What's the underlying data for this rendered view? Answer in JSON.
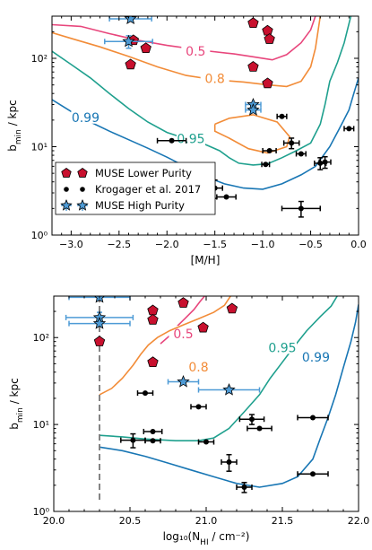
{
  "chart_data": [
    {
      "type": "scatter",
      "xlabel": "[M/H]",
      "ylabel": "b_min / kpc",
      "xlim": [
        -3.2,
        0.0
      ],
      "ylim": [
        1,
        300
      ],
      "yscale": "log",
      "x_ticks": [
        -3.0,
        -2.5,
        -2.0,
        -1.5,
        -1.0,
        -0.5,
        0.0
      ],
      "x_tick_labels": [
        "−3.0",
        "−2.5",
        "−2.0",
        "−1.5",
        "−1.0",
        "−0.5",
        "0.0"
      ],
      "y_ticks": [
        1,
        10,
        100
      ],
      "y_tick_labels": [
        "10⁰",
        "10¹",
        "10²"
      ],
      "legend_position": "lower-left",
      "legend": [
        "MUSE Lower Purity",
        "Krogager et al. 2017",
        "MUSE High Purity"
      ],
      "contours": [
        {
          "level": 0.5,
          "label": "0.5",
          "color": "#e8467c",
          "points": [
            [
              -3.2,
              240
            ],
            [
              -2.9,
              230
            ],
            [
              -2.6,
              190
            ],
            [
              -2.3,
              160
            ],
            [
              -2.0,
              140
            ],
            [
              -1.6,
              122
            ],
            [
              -1.3,
              112
            ],
            [
              -1.1,
              104
            ],
            [
              -0.9,
              96
            ],
            [
              -0.75,
              110
            ],
            [
              -0.6,
              150
            ],
            [
              -0.5,
              210
            ],
            [
              -0.45,
              300
            ]
          ]
        },
        {
          "level": 0.8,
          "label": "0.8",
          "color": "#f28c38",
          "points": [
            [
              -3.2,
              195
            ],
            [
              -3.0,
              168
            ],
            [
              -2.7,
              135
            ],
            [
              -2.4,
              105
            ],
            [
              -2.1,
              80
            ],
            [
              -1.8,
              64
            ],
            [
              -1.5,
              57
            ],
            [
              -1.2,
              54
            ],
            [
              -0.95,
              50
            ],
            [
              -0.75,
              48
            ],
            [
              -0.6,
              55
            ],
            [
              -0.5,
              80
            ],
            [
              -0.45,
              130
            ],
            [
              -0.4,
              300
            ]
          ],
          "island": [
            [
              -1.5,
              18
            ],
            [
              -1.35,
              21
            ],
            [
              -1.1,
              23
            ],
            [
              -0.85,
              19
            ],
            [
              -0.72,
              13
            ],
            [
              -0.75,
              10
            ],
            [
              -0.95,
              8.5
            ],
            [
              -1.15,
              9.5
            ],
            [
              -1.35,
              12.5
            ],
            [
              -1.5,
              15
            ],
            [
              -1.5,
              18
            ]
          ]
        },
        {
          "level": 0.95,
          "label": "0.95",
          "color": "#1fa08e",
          "points": [
            [
              -3.2,
              120
            ],
            [
              -3.0,
              85
            ],
            [
              -2.8,
              60
            ],
            [
              -2.6,
              40
            ],
            [
              -2.4,
              27
            ],
            [
              -2.2,
              19
            ],
            [
              -2.0,
              14.5
            ],
            [
              -1.8,
              12.3
            ],
            [
              -1.6,
              10.6
            ],
            [
              -1.45,
              9
            ],
            [
              -1.35,
              7.5
            ],
            [
              -1.25,
              6.5
            ],
            [
              -1.1,
              6.2
            ],
            [
              -0.95,
              6.4
            ],
            [
              -0.8,
              7.5
            ],
            [
              -0.65,
              9
            ],
            [
              -0.5,
              11
            ],
            [
              -0.4,
              18
            ],
            [
              -0.35,
              30
            ],
            [
              -0.3,
              55
            ],
            [
              -0.22,
              90
            ],
            [
              -0.15,
              150
            ],
            [
              -0.08,
              300
            ]
          ]
        },
        {
          "level": 0.99,
          "label": "0.99",
          "color": "#1876b4",
          "points": [
            [
              -3.2,
              34
            ],
            [
              -3.0,
              25
            ],
            [
              -2.8,
              19
            ],
            [
              -2.6,
              15
            ],
            [
              -2.4,
              12
            ],
            [
              -2.2,
              9.6
            ],
            [
              -2.0,
              7.6
            ],
            [
              -1.8,
              5.9
            ],
            [
              -1.6,
              4.6
            ],
            [
              -1.4,
              3.8
            ],
            [
              -1.2,
              3.4
            ],
            [
              -1.0,
              3.3
            ],
            [
              -0.8,
              3.8
            ],
            [
              -0.6,
              4.8
            ],
            [
              -0.45,
              6
            ],
            [
              -0.3,
              10
            ],
            [
              -0.2,
              16
            ],
            [
              -0.1,
              26
            ],
            [
              -0.05,
              40
            ],
            [
              0.0,
              60
            ]
          ]
        }
      ],
      "series": [
        {
          "name": "MUSE Lower Purity",
          "marker": "pentagon",
          "color": "#c8102e",
          "points": [
            [
              -2.35,
              160
            ],
            [
              -2.22,
              130
            ],
            [
              -2.38,
              85
            ],
            [
              -1.1,
              250
            ],
            [
              -0.95,
              205
            ],
            [
              -0.93,
              165
            ],
            [
              -1.1,
              80
            ],
            [
              -0.95,
              52
            ]
          ]
        },
        {
          "name": "Krogager et al. 2017",
          "marker": "circle",
          "color": "#000000",
          "points": [
            {
              "x": -1.95,
              "y": 11.7,
              "xerr": 0.15
            },
            {
              "x": -0.8,
              "y": 22,
              "xerr": 0.05
            },
            {
              "x": -0.1,
              "y": 16,
              "xerr": 0.05
            },
            {
              "x": -0.7,
              "y": 11,
              "xerr": 0.08,
              "yerr": 1.5
            },
            {
              "x": -0.93,
              "y": 9,
              "xerr": 0.07
            },
            {
              "x": -0.6,
              "y": 8.3,
              "xerr": 0.05
            },
            {
              "x": -0.97,
              "y": 6.3,
              "xerr": 0.04
            },
            {
              "x": -0.4,
              "y": 6.5,
              "xerr": 0.06,
              "yerr": 1.0
            },
            {
              "x": -0.35,
              "y": 6.7,
              "xerr": 0.06,
              "yerr": 1.0
            },
            {
              "x": -1.5,
              "y": 3.4,
              "xerr": 0.08,
              "yerr": 0.8
            },
            {
              "x": -1.38,
              "y": 2.7,
              "xerr": 0.1
            },
            {
              "x": -0.6,
              "y": 2.0,
              "xerr": 0.2,
              "yerr": 0.4
            }
          ]
        },
        {
          "name": "MUSE High Purity",
          "marker": "star",
          "color": "#4e9bd6",
          "points": [
            {
              "x": -2.38,
              "y": 280,
              "xerr": 0.22
            },
            {
              "x": -2.4,
              "y": 155,
              "xerr": 0.25,
              "yerr": 25
            },
            {
              "x": -1.1,
              "y": 30,
              "xerr": 0.08
            },
            {
              "x": -1.1,
              "y": 26,
              "xerr": 0.08
            }
          ]
        }
      ]
    },
    {
      "type": "scatter",
      "xlabel": "log₁₀(N_HI / cm⁻²)",
      "ylabel": "b_min / kpc",
      "xlim": [
        20.0,
        22.0
      ],
      "ylim": [
        1,
        300
      ],
      "yscale": "log",
      "x_ticks": [
        20.0,
        20.5,
        21.0,
        21.5,
        22.0
      ],
      "x_tick_labels": [
        "20.0",
        "20.5",
        "21.0",
        "21.5",
        "22.0"
      ],
      "y_ticks": [
        1,
        10,
        100
      ],
      "y_tick_labels": [
        "10⁰",
        "10¹",
        "10²"
      ],
      "vline": 20.3,
      "contours": [
        {
          "level": 0.5,
          "label": "0.5",
          "color": "#e8467c",
          "points": [
            [
              20.7,
              85
            ],
            [
              20.76,
              105
            ],
            [
              20.8,
              130
            ],
            [
              20.86,
              165
            ],
            [
              20.92,
              210
            ],
            [
              20.96,
              260
            ],
            [
              20.99,
              300
            ]
          ]
        },
        {
          "level": 0.8,
          "label": "0.8",
          "color": "#f28c38",
          "points": [
            [
              20.3,
              22
            ],
            [
              20.38,
              26
            ],
            [
              20.45,
              34
            ],
            [
              20.52,
              48
            ],
            [
              20.57,
              64
            ],
            [
              20.62,
              82
            ],
            [
              20.68,
              100
            ],
            [
              20.76,
              120
            ],
            [
              20.85,
              140
            ],
            [
              20.95,
              165
            ],
            [
              21.05,
              195
            ],
            [
              21.12,
              235
            ],
            [
              21.16,
              300
            ]
          ]
        },
        {
          "level": 0.95,
          "label": "0.95",
          "color": "#1fa08e",
          "points": [
            [
              20.3,
              7.5
            ],
            [
              20.45,
              7.2
            ],
            [
              20.6,
              6.8
            ],
            [
              20.8,
              6.5
            ],
            [
              20.95,
              6.5
            ],
            [
              21.05,
              7.0
            ],
            [
              21.15,
              9
            ],
            [
              21.25,
              14
            ],
            [
              21.35,
              22
            ],
            [
              21.42,
              34
            ],
            [
              21.5,
              52
            ],
            [
              21.58,
              80
            ],
            [
              21.66,
              120
            ],
            [
              21.75,
              175
            ],
            [
              21.82,
              230
            ],
            [
              21.86,
              300
            ]
          ]
        },
        {
          "level": 0.99,
          "label": "0.99",
          "color": "#1876b4",
          "points": [
            [
              20.3,
              5.5
            ],
            [
              20.45,
              5
            ],
            [
              20.6,
              4.3
            ],
            [
              20.75,
              3.6
            ],
            [
              20.9,
              3.0
            ],
            [
              21.05,
              2.5
            ],
            [
              21.2,
              2.1
            ],
            [
              21.35,
              1.9
            ],
            [
              21.5,
              2.1
            ],
            [
              21.6,
              2.5
            ],
            [
              21.7,
              4
            ],
            [
              21.75,
              7
            ],
            [
              21.8,
              12
            ],
            [
              21.85,
              22
            ],
            [
              21.9,
              45
            ],
            [
              21.95,
              90
            ],
            [
              21.98,
              150
            ],
            [
              22.0,
              240
            ]
          ]
        }
      ],
      "series": [
        {
          "name": "MUSE Lower Purity",
          "marker": "pentagon",
          "color": "#c8102e",
          "points": [
            [
              20.3,
              90
            ],
            [
              20.65,
              205
            ],
            [
              20.65,
              160
            ],
            [
              20.85,
              250
            ],
            [
              20.98,
              130
            ],
            [
              21.17,
              215
            ],
            [
              20.65,
              52
            ]
          ]
        },
        {
          "name": "Krogager et al. 2017",
          "marker": "circle",
          "color": "#000000",
          "points": [
            {
              "x": 20.6,
              "y": 23,
              "xerr": 0.05
            },
            {
              "x": 20.95,
              "y": 16,
              "xerr": 0.05
            },
            {
              "x": 21.3,
              "y": 11.5,
              "xerr": 0.08,
              "yerr": 1.5
            },
            {
              "x": 21.35,
              "y": 9,
              "xerr": 0.08
            },
            {
              "x": 21.7,
              "y": 12,
              "xerr": 0.1
            },
            {
              "x": 20.65,
              "y": 8.3,
              "xerr": 0.06
            },
            {
              "x": 20.52,
              "y": 6.6,
              "xerr": 0.08,
              "yerr": 1.2
            },
            {
              "x": 20.65,
              "y": 6.5,
              "xerr": 0.05
            },
            {
              "x": 21.0,
              "y": 6.3,
              "xerr": 0.05
            },
            {
              "x": 21.15,
              "y": 3.7,
              "xerr": 0.05,
              "yerr": 0.8
            },
            {
              "x": 21.7,
              "y": 2.7,
              "xerr": 0.1
            },
            {
              "x": 21.25,
              "y": 1.9,
              "xerr": 0.05,
              "yerr": 0.25
            }
          ]
        },
        {
          "name": "MUSE High Purity",
          "marker": "star",
          "color": "#4e9bd6",
          "points": [
            {
              "x": 20.3,
              "y": 290,
              "xerr": 0.2
            },
            {
              "x": 20.3,
              "y": 170,
              "xerr": 0.22,
              "yerr": 25
            },
            {
              "x": 20.3,
              "y": 145,
              "xerr": 0.2
            },
            {
              "x": 20.85,
              "y": 31,
              "xerr": 0.1
            },
            {
              "x": 21.15,
              "y": 25,
              "xerr": 0.2
            }
          ]
        }
      ]
    }
  ]
}
